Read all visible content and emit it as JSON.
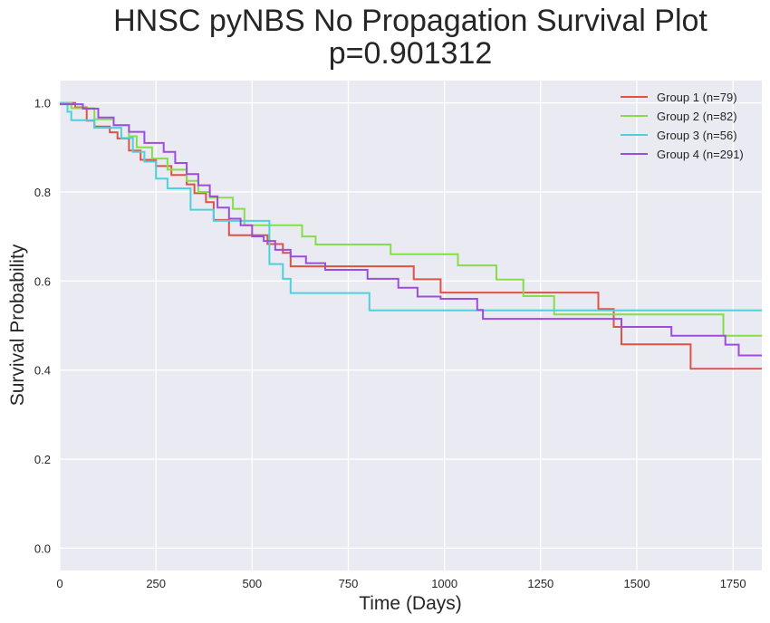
{
  "chart_data": {
    "type": "line",
    "step": true,
    "title": "HNSC pyNBS No Propagation Survival Plot",
    "subtitle": "p=0.901312",
    "xlabel": "Time (Days)",
    "ylabel": "Survival Probability",
    "xlim": [
      0,
      1825
    ],
    "ylim": [
      -0.05,
      1.05
    ],
    "xticks": [
      0,
      250,
      500,
      750,
      1000,
      1250,
      1500,
      1750
    ],
    "yticks": [
      0.0,
      0.2,
      0.4,
      0.6,
      0.8,
      1.0
    ],
    "xtick_labels": [
      "0",
      "250",
      "500",
      "750",
      "1000",
      "1250",
      "1500",
      "1750"
    ],
    "ytick_labels": [
      "0.0",
      "0.2",
      "0.4",
      "0.6",
      "0.8",
      "1.0"
    ],
    "grid": true,
    "legend_position": "top-right",
    "colors": {
      "background": "#eaeaf2",
      "grid": "#ffffff"
    },
    "series": [
      {
        "name": "Group 1 (n=79)",
        "color": "#e05246",
        "x": [
          0,
          40,
          70,
          90,
          130,
          150,
          180,
          210,
          250,
          290,
          330,
          350,
          380,
          400,
          440,
          540,
          580,
          600,
          920,
          990,
          1400,
          1440,
          1460,
          1640,
          1825
        ],
        "y": [
          1.0,
          0.99,
          0.96,
          0.947,
          0.934,
          0.92,
          0.893,
          0.872,
          0.858,
          0.838,
          0.817,
          0.797,
          0.777,
          0.737,
          0.703,
          0.683,
          0.663,
          0.633,
          0.604,
          0.574,
          0.537,
          0.497,
          0.458,
          0.403,
          0.403
        ]
      },
      {
        "name": "Group 2 (n=82)",
        "color": "#87dc4a",
        "x": [
          0,
          30,
          90,
          140,
          180,
          200,
          240,
          280,
          330,
          360,
          390,
          450,
          480,
          540,
          630,
          665,
          860,
          1035,
          1135,
          1205,
          1285,
          1395,
          1725,
          1825
        ],
        "y": [
          1.0,
          0.988,
          0.963,
          0.95,
          0.925,
          0.9,
          0.875,
          0.85,
          0.825,
          0.8,
          0.787,
          0.762,
          0.725,
          0.725,
          0.7,
          0.682,
          0.66,
          0.635,
          0.603,
          0.566,
          0.525,
          0.525,
          0.477,
          0.477
        ]
      },
      {
        "name": "Group 3 (n=56)",
        "color": "#4dd1dc",
        "x": [
          0,
          20,
          30,
          90,
          160,
          190,
          220,
          250,
          280,
          340,
          400,
          545,
          580,
          600,
          805,
          1825
        ],
        "y": [
          1.0,
          0.98,
          0.961,
          0.944,
          0.921,
          0.89,
          0.868,
          0.83,
          0.808,
          0.76,
          0.735,
          0.638,
          0.605,
          0.573,
          0.534,
          0.534
        ]
      },
      {
        "name": "Group 4 (n=291)",
        "color": "#9d4ddc",
        "x": [
          0,
          60,
          100,
          140,
          180,
          220,
          270,
          300,
          330,
          360,
          390,
          410,
          440,
          470,
          500,
          530,
          560,
          600,
          640,
          690,
          800,
          880,
          930,
          990,
          1085,
          1100,
          1360,
          1460,
          1590,
          1730,
          1765,
          1825
        ],
        "y": [
          0.997,
          0.987,
          0.967,
          0.95,
          0.935,
          0.91,
          0.89,
          0.865,
          0.84,
          0.815,
          0.79,
          0.765,
          0.74,
          0.725,
          0.7,
          0.69,
          0.67,
          0.655,
          0.64,
          0.625,
          0.605,
          0.585,
          0.565,
          0.56,
          0.535,
          0.515,
          0.515,
          0.497,
          0.477,
          0.457,
          0.433,
          0.433
        ]
      }
    ]
  }
}
